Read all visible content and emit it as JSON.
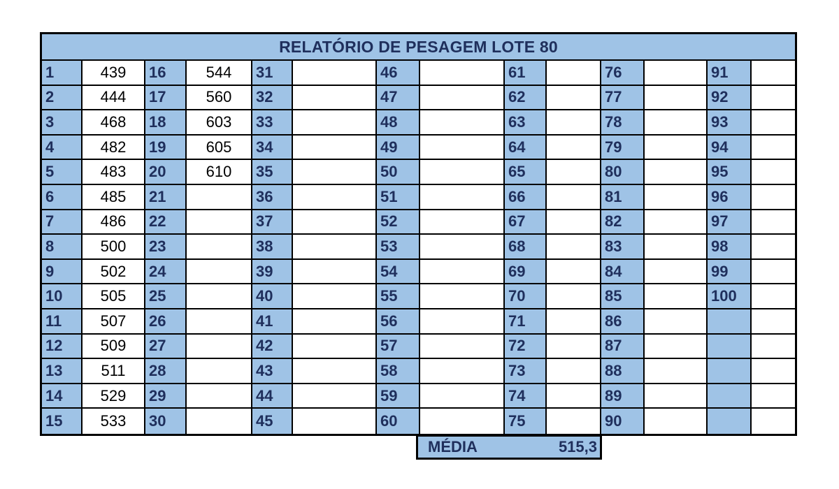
{
  "title": "RELATÓRIO DE PESAGEM LOTE 80",
  "columns": [
    {
      "indexes": [
        "1",
        "2",
        "3",
        "4",
        "5",
        "6",
        "7",
        "8",
        "9",
        "10",
        "11",
        "12",
        "13",
        "14",
        "15"
      ],
      "values": [
        "439",
        "444",
        "468",
        "482",
        "483",
        "485",
        "486",
        "500",
        "502",
        "505",
        "507",
        "509",
        "511",
        "529",
        "533"
      ]
    },
    {
      "indexes": [
        "16",
        "17",
        "18",
        "19",
        "20",
        "21",
        "22",
        "23",
        "24",
        "25",
        "26",
        "27",
        "28",
        "29",
        "30"
      ],
      "values": [
        "544",
        "560",
        "603",
        "605",
        "610",
        "",
        "",
        "",
        "",
        "",
        "",
        "",
        "",
        "",
        ""
      ]
    },
    {
      "indexes": [
        "31",
        "32",
        "33",
        "34",
        "35",
        "36",
        "37",
        "38",
        "39",
        "40",
        "41",
        "42",
        "43",
        "44",
        "45"
      ],
      "values": [
        "",
        "",
        "",
        "",
        "",
        "",
        "",
        "",
        "",
        "",
        "",
        "",
        "",
        "",
        ""
      ]
    },
    {
      "indexes": [
        "46",
        "47",
        "48",
        "49",
        "50",
        "51",
        "52",
        "53",
        "54",
        "55",
        "56",
        "57",
        "58",
        "59",
        "60"
      ],
      "values": [
        "",
        "",
        "",
        "",
        "",
        "",
        "",
        "",
        "",
        "",
        "",
        "",
        "",
        "",
        ""
      ]
    },
    {
      "indexes": [
        "61",
        "62",
        "63",
        "64",
        "65",
        "66",
        "67",
        "68",
        "69",
        "70",
        "71",
        "72",
        "73",
        "74",
        "75"
      ],
      "values": [
        "",
        "",
        "",
        "",
        "",
        "",
        "",
        "",
        "",
        "",
        "",
        "",
        "",
        "",
        ""
      ]
    },
    {
      "indexes": [
        "76",
        "77",
        "78",
        "79",
        "80",
        "81",
        "82",
        "83",
        "84",
        "85",
        "86",
        "87",
        "88",
        "89",
        "90"
      ],
      "values": [
        "",
        "",
        "",
        "",
        "",
        "",
        "",
        "",
        "",
        "",
        "",
        "",
        "",
        "",
        ""
      ]
    },
    {
      "indexes": [
        "91",
        "92",
        "93",
        "94",
        "95",
        "96",
        "97",
        "98",
        "99",
        "100",
        "",
        "",
        "",
        "",
        ""
      ],
      "values": [
        "",
        "",
        "",
        "",
        "",
        "",
        "",
        "",
        "",
        "",
        "",
        "",
        "",
        "",
        ""
      ]
    }
  ],
  "summary": {
    "label": "MÉDIA",
    "value": "515,3"
  },
  "colors": {
    "header_fill": "#9fc3e6",
    "header_text": "#1f2f5c",
    "grid_lines": "#000000"
  }
}
